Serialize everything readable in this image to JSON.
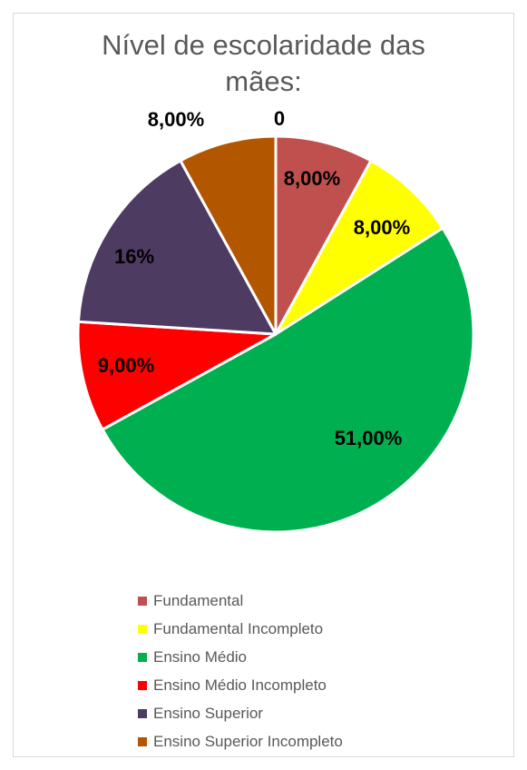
{
  "chart_data": {
    "type": "pie",
    "title_lines": [
      "Nível de escolaridade das",
      "mães:"
    ],
    "categories": [
      "Fundamental",
      "Fundamental Incompleto",
      "Ensino Médio",
      "Ensino Médio Incompleto",
      "Ensino Superior",
      "Ensino Superior Incompleto"
    ],
    "values": [
      8,
      8,
      51,
      9,
      16,
      8
    ],
    "data_labels": [
      "8,00%",
      "8,00%",
      "51,00%",
      "9,00%",
      "16%",
      "8,00%"
    ],
    "extra_label": "0",
    "colors": [
      "#c0504d",
      "#ffff00",
      "#00b050",
      "#ff0000",
      "#4e3b62",
      "#b35600"
    ],
    "legend_position": "bottom"
  }
}
